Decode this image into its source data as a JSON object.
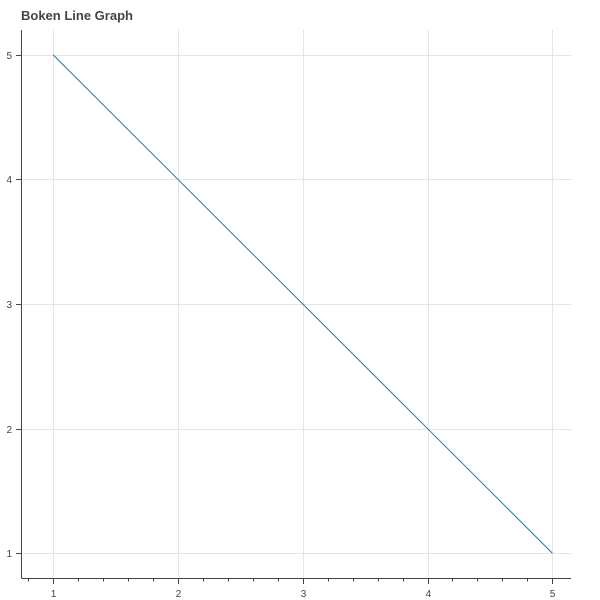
{
  "chart_data": {
    "type": "line",
    "title": "Boken Line Graph",
    "xlabel": "",
    "ylabel": "",
    "x": [
      1,
      2,
      3,
      4,
      5
    ],
    "series": [
      {
        "values": [
          5,
          4,
          3,
          2,
          1
        ],
        "color": "#1f77b4"
      }
    ],
    "xlim": [
      0.75,
      5.15
    ],
    "ylim": [
      0.8,
      5.2
    ],
    "x_ticks": [
      "1",
      "2",
      "3",
      "4",
      "5"
    ],
    "y_ticks": [
      "1",
      "2",
      "3",
      "4",
      "5"
    ],
    "x_minor_ticks_per_major": 5,
    "grid": true,
    "grid_color": "#e5e5e5",
    "axis_color": "#444444"
  }
}
